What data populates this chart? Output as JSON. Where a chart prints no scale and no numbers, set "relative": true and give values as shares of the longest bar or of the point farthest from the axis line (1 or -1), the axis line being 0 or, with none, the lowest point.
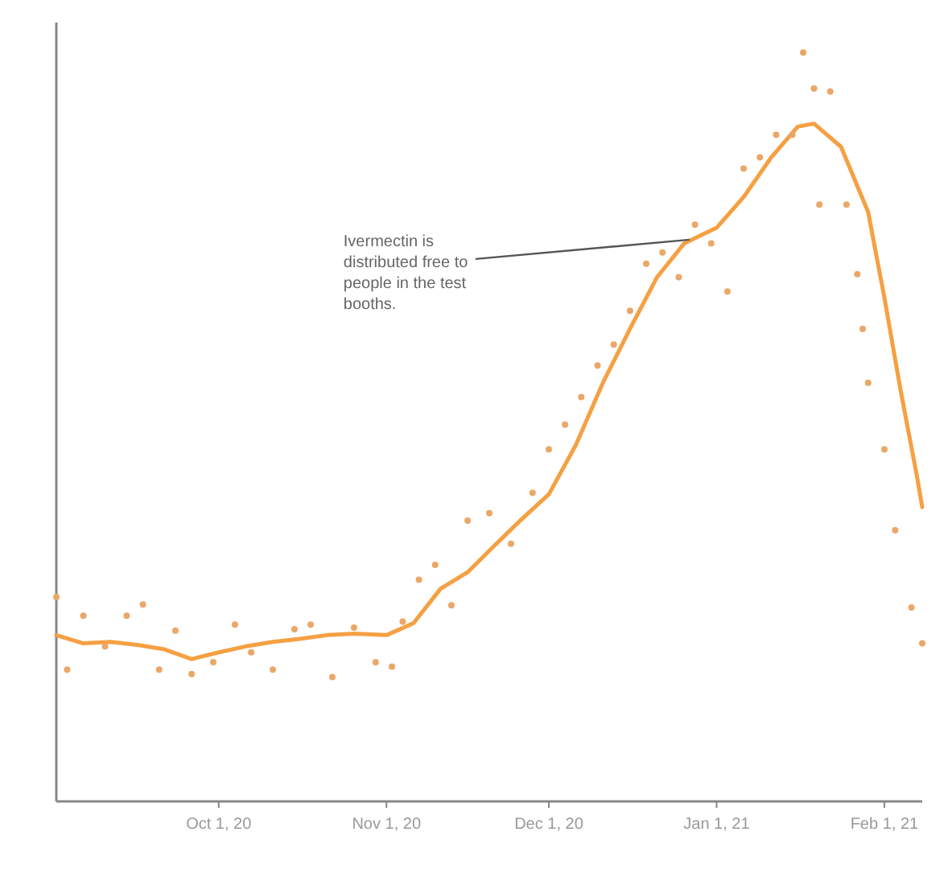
{
  "chart_data": {
    "type": "line",
    "relative": true,
    "xlim": [
      "2020-09-01",
      "2021-02-08"
    ],
    "xticks": [
      {
        "value": "2020-10-01",
        "label": "Oct 1, 20"
      },
      {
        "value": "2020-11-01",
        "label": "Nov 1, 20"
      },
      {
        "value": "2020-12-01",
        "label": "Dec 1, 20"
      },
      {
        "value": "2021-01-01",
        "label": "Jan 1, 21"
      },
      {
        "value": "2021-02-01",
        "label": "Feb 1, 21"
      }
    ],
    "annotations": [
      {
        "text": "Ivermectin is\ndistributed free to\npeople in the test\nbooths.",
        "x": "2020-12-27",
        "y": 0.75
      }
    ],
    "series": [
      {
        "type": "scatter",
        "color": "#eba768",
        "x": [
          "2020-09-01",
          "2020-09-03",
          "2020-09-06",
          "2020-09-10",
          "2020-09-14",
          "2020-09-17",
          "2020-09-20",
          "2020-09-23",
          "2020-09-26",
          "2020-09-30",
          "2020-10-04",
          "2020-10-07",
          "2020-10-11",
          "2020-10-15",
          "2020-10-18",
          "2020-10-22",
          "2020-10-26",
          "2020-10-30",
          "2020-11-02",
          "2020-11-04",
          "2020-11-07",
          "2020-11-10",
          "2020-11-13",
          "2020-11-16",
          "2020-11-20",
          "2020-11-24",
          "2020-11-28",
          "2020-12-01",
          "2020-12-04",
          "2020-12-07",
          "2020-12-10",
          "2020-12-13",
          "2020-12-16",
          "2020-12-19",
          "2020-12-22",
          "2020-12-25",
          "2020-12-28",
          "2020-12-31",
          "2021-01-03",
          "2021-01-06",
          "2021-01-09",
          "2021-01-12",
          "2021-01-15",
          "2021-01-17",
          "2021-01-19",
          "2021-01-20",
          "2021-01-22",
          "2021-01-25",
          "2021-01-27",
          "2021-01-28",
          "2021-01-29",
          "2021-02-01",
          "2021-02-03",
          "2021-02-06",
          "2021-02-08"
        ],
        "values": [
          0.273,
          0.176,
          0.248,
          0.207,
          0.248,
          0.263,
          0.176,
          0.228,
          0.17,
          0.186,
          0.236,
          0.199,
          0.176,
          0.23,
          0.236,
          0.166,
          0.232,
          0.186,
          0.18,
          0.24,
          0.296,
          0.316,
          0.262,
          0.375,
          0.385,
          0.344,
          0.412,
          0.47,
          0.503,
          0.54,
          0.582,
          0.61,
          0.655,
          0.718,
          0.733,
          0.7,
          0.77,
          0.745,
          0.681,
          0.845,
          0.86,
          0.89,
          0.89,
          1.0,
          0.952,
          0.797,
          0.948,
          0.797,
          0.704,
          0.631,
          0.559,
          0.47,
          0.362,
          0.259,
          0.211
        ]
      },
      {
        "color": "#f5a042",
        "x": [
          "2020-09-01",
          "2020-09-06",
          "2020-09-11",
          "2020-09-16",
          "2020-09-21",
          "2020-09-26",
          "2020-10-01",
          "2020-10-06",
          "2020-10-11",
          "2020-10-16",
          "2020-10-21",
          "2020-10-26",
          "2020-11-01",
          "2020-11-06",
          "2020-11-11",
          "2020-11-16",
          "2020-11-21",
          "2020-11-26",
          "2020-12-01",
          "2020-12-06",
          "2020-12-11",
          "2020-12-16",
          "2020-12-21",
          "2020-12-26",
          "2021-01-01",
          "2021-01-06",
          "2021-01-11",
          "2021-01-16",
          "2021-01-19",
          "2021-01-24",
          "2021-01-29",
          "2021-02-01",
          "2021-02-04",
          "2021-02-07",
          "2021-02-08"
        ],
        "values": [
          0.222,
          0.211,
          0.213,
          0.209,
          0.203,
          0.19,
          0.199,
          0.207,
          0.213,
          0.217,
          0.222,
          0.224,
          0.222,
          0.238,
          0.284,
          0.306,
          0.342,
          0.377,
          0.41,
          0.476,
          0.559,
          0.631,
          0.7,
          0.745,
          0.766,
          0.807,
          0.859,
          0.901,
          0.905,
          0.874,
          0.787,
          0.673,
          0.549,
          0.435,
          0.393
        ]
      }
    ]
  }
}
